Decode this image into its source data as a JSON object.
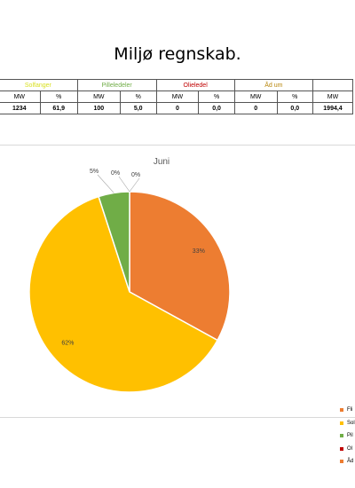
{
  "page": {
    "title": "Miljø regnskab."
  },
  "table": {
    "groups": [
      {
        "label": "Solfanger",
        "color": "#d9e021",
        "span": 2
      },
      {
        "label": "Pilleledeler",
        "color": "#70ad47",
        "span": 2
      },
      {
        "label": "Olieledel",
        "color": "#c00000",
        "span": 2
      },
      {
        "label": "Åd um",
        "color": "#b8860b",
        "span": 2
      },
      {
        "label": "",
        "color": "#000000",
        "span": 1
      }
    ],
    "units": [
      "MW",
      "%",
      "MW",
      "%",
      "MW",
      "%",
      "MW",
      "%",
      "MW"
    ],
    "values": [
      "1234",
      "61,9",
      "100",
      "5,0",
      "0",
      "0,0",
      "0",
      "0,0",
      "1994,4"
    ]
  },
  "chart_data": {
    "type": "pie",
    "title": "Juni",
    "slices": [
      {
        "label": "Fli",
        "value": 33,
        "display": "33%",
        "color": "#ed7d31"
      },
      {
        "label": "Sol",
        "value": 62,
        "display": "62%",
        "color": "#ffc000"
      },
      {
        "label": "Pil",
        "value": 5,
        "display": "5%",
        "color": "#70ad47"
      },
      {
        "label": "Ol",
        "value": 0,
        "display": "0%",
        "color": "#c00000"
      },
      {
        "label": "Åd",
        "value": 0,
        "display": "0%",
        "color": "#ed7d31"
      }
    ],
    "legend_position": "right"
  }
}
